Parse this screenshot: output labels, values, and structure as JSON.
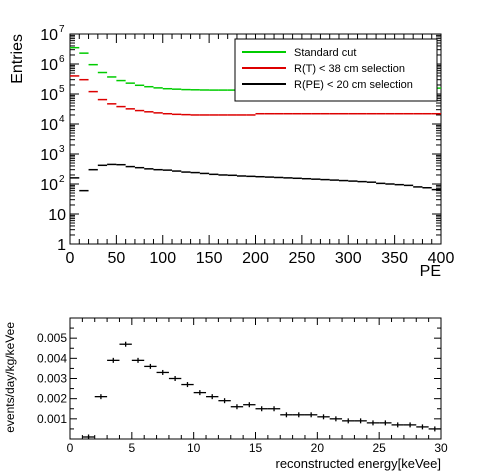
{
  "chart_data": [
    {
      "type": "line",
      "xlabel": "PE",
      "ylabel": "Entries",
      "xlim": [
        0,
        400
      ],
      "ylim": [
        1,
        10000000
      ],
      "yscale": "log",
      "x_ticks": [
        "0",
        "50",
        "100",
        "150",
        "200",
        "250",
        "300",
        "350",
        "400"
      ],
      "y_ticks": [
        "1",
        "10",
        "10²",
        "10³",
        "10⁴",
        "10⁵",
        "10⁶",
        "10⁷"
      ],
      "legend_position": "top-right",
      "grid": false,
      "series": [
        {
          "name": "Standard cut",
          "color": "#00cc00",
          "x": [
            5,
            15,
            25,
            35,
            45,
            55,
            65,
            75,
            85,
            95,
            105,
            115,
            125,
            135,
            145,
            155,
            165,
            175,
            185,
            195,
            205,
            215,
            225,
            235,
            245,
            255,
            265,
            275,
            285,
            295,
            305,
            315,
            325,
            335,
            345,
            355,
            365,
            375,
            385,
            395
          ],
          "values": [
            3500000,
            2300000,
            950000,
            520000,
            370000,
            280000,
            230000,
            195000,
            175000,
            160000,
            150000,
            145000,
            140000,
            138000,
            136000,
            135000,
            135000,
            135000,
            135000,
            136000,
            150000,
            150000,
            150000,
            150000,
            150000,
            150000,
            150000,
            150000,
            150000,
            150000,
            150000,
            151000,
            152000,
            152000,
            153000,
            153000,
            154000,
            155000,
            156000,
            157000
          ]
        },
        {
          "name": "R(T) < 38 cm selection",
          "color": "#dd0000",
          "x": [
            5,
            15,
            25,
            35,
            45,
            55,
            65,
            75,
            85,
            95,
            105,
            115,
            125,
            135,
            145,
            155,
            165,
            175,
            185,
            195,
            205,
            215,
            225,
            235,
            245,
            255,
            265,
            275,
            285,
            295,
            305,
            315,
            325,
            335,
            345,
            355,
            365,
            375,
            385,
            395
          ],
          "values": [
            400000,
            300000,
            120000,
            65000,
            47000,
            38000,
            32000,
            28000,
            25500,
            23500,
            22000,
            21000,
            20500,
            20000,
            20000,
            20000,
            20000,
            20000,
            20000,
            20000,
            22000,
            22000,
            22000,
            22000,
            22000,
            22000,
            22000,
            22000,
            22000,
            22000,
            22000,
            22000,
            22000,
            22000,
            22000,
            22000,
            22000,
            22000,
            22000,
            22000
          ]
        },
        {
          "name": "R(PE) < 20 cm selection",
          "color": "#000000",
          "x": [
            5,
            15,
            25,
            35,
            45,
            55,
            65,
            75,
            85,
            95,
            105,
            115,
            125,
            135,
            145,
            155,
            165,
            175,
            185,
            195,
            205,
            215,
            225,
            235,
            245,
            255,
            265,
            275,
            285,
            295,
            305,
            315,
            325,
            335,
            345,
            355,
            365,
            375,
            385,
            395
          ],
          "values": [
            160,
            60,
            300,
            420,
            450,
            440,
            380,
            350,
            320,
            300,
            290,
            270,
            250,
            240,
            225,
            210,
            200,
            195,
            185,
            180,
            175,
            170,
            165,
            160,
            155,
            150,
            145,
            140,
            135,
            130,
            125,
            120,
            115,
            105,
            100,
            95,
            90,
            80,
            75,
            65
          ]
        }
      ]
    },
    {
      "type": "scatter",
      "xlabel": "reconstructed energy[keVee]",
      "ylabel": "events/day/kg/keVee",
      "xlim": [
        0,
        30
      ],
      "ylim": [
        0,
        0.006
      ],
      "x_ticks": [
        "0",
        "5",
        "10",
        "15",
        "20",
        "25",
        "30"
      ],
      "y_ticks": [
        "0.001",
        "0.002",
        "0.003",
        "0.004",
        "0.005"
      ],
      "grid": false,
      "series": [
        {
          "x": [
            1.5,
            2.5,
            3.5,
            4.5,
            5.5,
            6.5,
            7.5,
            8.5,
            9.5,
            10.5,
            11.5,
            12.5,
            13.5,
            14.5,
            15.5,
            16.5,
            17.5,
            18.5,
            19.5,
            20.5,
            21.5,
            22.5,
            23.5,
            24.5,
            25.5,
            26.5,
            27.5,
            28.5,
            29.5
          ],
          "values": [
            0.0001,
            0.0021,
            0.0039,
            0.0047,
            0.0039,
            0.0036,
            0.0033,
            0.003,
            0.0027,
            0.0023,
            0.0021,
            0.0019,
            0.0016,
            0.0017,
            0.0015,
            0.0015,
            0.0012,
            0.0012,
            0.0012,
            0.0011,
            0.001,
            0.0009,
            0.0009,
            0.0008,
            0.0008,
            0.0007,
            0.0007,
            0.0006,
            0.0005
          ]
        }
      ]
    }
  ]
}
